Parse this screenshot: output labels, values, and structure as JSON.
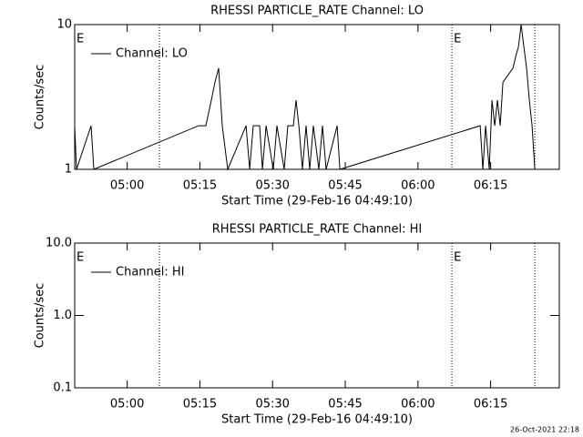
{
  "chart_data": [
    {
      "type": "line",
      "title": "RHESSI PARTICLE_RATE Channel: LO",
      "xlabel": "Start Time (29-Feb-16 04:49:10)",
      "ylabel": "Counts/sec",
      "log_y": true,
      "legend": "top-left",
      "xlim": [
        "04:49:10",
        "06:29:10"
      ],
      "xticks": [
        {
          "value": "05:00:00",
          "label": "05:00"
        },
        {
          "value": "05:15:00",
          "label": "05:15"
        },
        {
          "value": "05:30:00",
          "label": "05:30"
        },
        {
          "value": "05:45:00",
          "label": "05:45"
        },
        {
          "value": "06:00:00",
          "label": "06:00"
        },
        {
          "value": "06:15:00",
          "label": "06:15"
        }
      ],
      "ylim": [
        1,
        10
      ],
      "yticks": [
        1,
        10
      ],
      "vlines": [
        "05:06:39",
        "06:07:00",
        "06:24:07"
      ],
      "annotations": [
        {
          "text": "E",
          "x": "04:49:10"
        },
        {
          "text": "E",
          "x": "06:07:00"
        }
      ],
      "series": [
        {
          "name": "Channel: LO",
          "color": "#000000",
          "x": [
            "04:49:10",
            "04:49:33",
            "04:52:33",
            "04:53:07",
            "05:14:44",
            "05:16:14",
            "05:17:22",
            "05:18:07",
            "05:18:52",
            "05:19:37",
            "05:20:45",
            "05:24:31",
            "05:25:16",
            "05:26:01",
            "05:27:20",
            "05:27:54",
            "05:28:39",
            "05:30:09",
            "05:30:54",
            "05:32:24",
            "05:33:09",
            "05:34:17",
            "05:34:51",
            "05:35:25",
            "05:36:10",
            "05:36:55",
            "05:37:40",
            "05:38:25",
            "05:39:33",
            "05:40:18",
            "05:41:03",
            "05:43:19",
            "05:43:53",
            "06:12:50",
            "06:13:24",
            "06:13:58",
            "06:14:43",
            "06:15:16",
            "06:15:50",
            "06:16:24",
            "06:16:58",
            "06:17:32",
            "06:19:36",
            "06:20:10",
            "06:20:44",
            "06:21:17",
            "06:21:51",
            "06:22:25",
            "06:22:59",
            "06:23:33",
            "06:24:07"
          ],
          "values": [
            2,
            1,
            2,
            1,
            2,
            2,
            3,
            4,
            5,
            2,
            1,
            2,
            1,
            2,
            2,
            1,
            2,
            1,
            2,
            1,
            2,
            2,
            3,
            2,
            1,
            2,
            1,
            2,
            1,
            2,
            1,
            2,
            1,
            2,
            1,
            2,
            1,
            3,
            2,
            3,
            2,
            4,
            5,
            6,
            7,
            10,
            7,
            5,
            3,
            2,
            1
          ]
        }
      ]
    },
    {
      "type": "line",
      "title": "RHESSI PARTICLE_RATE Channel: HI",
      "xlabel": "Start Time (29-Feb-16 04:49:10)",
      "ylabel": "Counts/sec",
      "log_y": true,
      "legend": "top-left",
      "xlim": [
        "04:49:10",
        "06:29:10"
      ],
      "xticks": [
        {
          "value": "05:00:00",
          "label": "05:00"
        },
        {
          "value": "05:15:00",
          "label": "05:15"
        },
        {
          "value": "05:30:00",
          "label": "05:30"
        },
        {
          "value": "05:45:00",
          "label": "05:45"
        },
        {
          "value": "06:00:00",
          "label": "06:00"
        },
        {
          "value": "06:15:00",
          "label": "06:15"
        }
      ],
      "ylim": [
        0.1,
        10
      ],
      "yticks": [
        0.1,
        {
          "value": 1,
          "label": "1.0"
        },
        {
          "value": 10,
          "label": "10.0"
        }
      ],
      "vlines": [
        "05:06:39",
        "06:07:00",
        "06:24:07"
      ],
      "annotations": [
        {
          "text": "E",
          "x": "04:49:10"
        },
        {
          "text": "E",
          "x": "06:07:00"
        }
      ],
      "series": [
        {
          "name": "Channel: HI",
          "color": "#000000",
          "x": [],
          "values": []
        }
      ]
    }
  ],
  "footer": "26-Oct-2021 22:18"
}
